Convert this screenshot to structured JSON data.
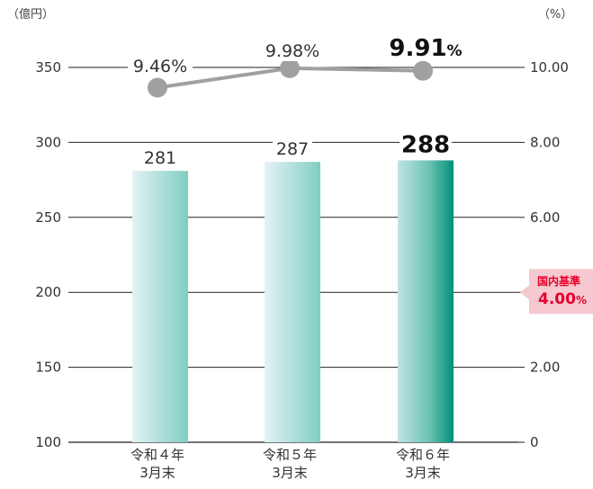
{
  "chart_data": {
    "type": "bar",
    "categories": [
      [
        "令和４年",
        "3月末"
      ],
      [
        "令和５年",
        "3月末"
      ],
      [
        "令和６年",
        "3月末"
      ]
    ],
    "bar_series": {
      "values": [
        281,
        287,
        288
      ],
      "labels": [
        "281",
        "287",
        "288"
      ],
      "axis": "left",
      "colors": [
        "#dff0f3",
        "#7ecbbf",
        "#00907a"
      ]
    },
    "line_series": {
      "values": [
        9.46,
        9.98,
        9.91
      ],
      "labels": [
        "9.46%",
        "9.98%",
        "9.91"
      ],
      "last_label_suffix": "%",
      "axis": "right",
      "color": "#a0a0a0"
    },
    "highlight_index": 2,
    "y_left": {
      "unit_label": "（億円）",
      "ylim": [
        100,
        350
      ],
      "ticks": [
        "100",
        "150",
        "200",
        "250",
        "300",
        "350"
      ],
      "tick_values": [
        100,
        150,
        200,
        250,
        300,
        350
      ]
    },
    "y_right": {
      "unit_label": "（%）",
      "ylim": [
        0,
        10
      ],
      "ticks": [
        "0",
        "2.00",
        "4.00",
        "6.00",
        "8.00",
        "10.00"
      ],
      "tick_values": [
        0,
        2,
        4,
        6,
        8,
        10
      ]
    },
    "grid": true,
    "reference": {
      "axis": "right",
      "value": 4.0,
      "title": "国内基準",
      "value_label": "4.00",
      "value_suffix": "%",
      "color": "#e4002b",
      "background": "#f6c8cf"
    }
  }
}
